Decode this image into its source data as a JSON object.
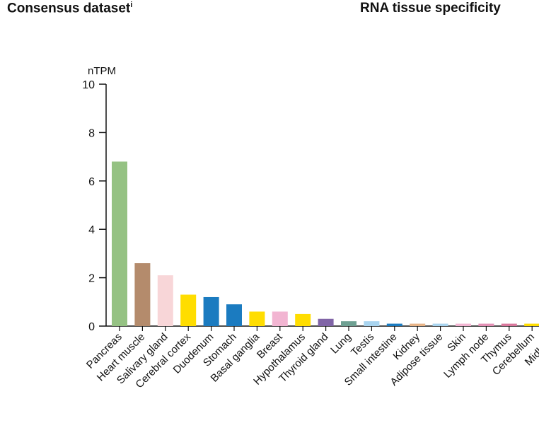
{
  "header": {
    "left_title": "Consensus dataset",
    "left_title_mark": "i",
    "right_title": "RNA tissue specificity"
  },
  "chart_data": {
    "type": "bar",
    "ylabel": "nTPM",
    "ylim": [
      0,
      10
    ],
    "yticks": [
      0,
      2,
      4,
      6,
      8,
      10
    ],
    "grid": false,
    "categories": [
      "Pancreas",
      "Heart muscle",
      "Salivary gland",
      "Cerebral cortex",
      "Duodenum",
      "Stomach",
      "Basal ganglia",
      "Breast",
      "Hypothalamus",
      "Thyroid gland",
      "Lung",
      "Testis",
      "Small intestine",
      "Kidney",
      "Adipose tissue",
      "Skin",
      "Lymph node",
      "Thymus",
      "Cerebellum",
      "Midbrain"
    ],
    "values": [
      6.8,
      2.6,
      2.1,
      1.3,
      1.2,
      0.9,
      0.6,
      0.6,
      0.5,
      0.3,
      0.2,
      0.2,
      0.1,
      0.1,
      0.1,
      0.1,
      0.1,
      0.1,
      0.1,
      0.0
    ],
    "colors": [
      "#95c283",
      "#b48b6c",
      "#f8d6d8",
      "#ffdd00",
      "#1b7bc0",
      "#1b7bc0",
      "#ffdd00",
      "#f2b5d2",
      "#ffdd00",
      "#8064a6",
      "#6ea092",
      "#a9d4ef",
      "#1b7bc0",
      "#e8b487",
      "#a9d4ef",
      "#f2b5d2",
      "#e390b5",
      "#d9779c",
      "#ffdd00",
      "#ffdd00"
    ]
  }
}
